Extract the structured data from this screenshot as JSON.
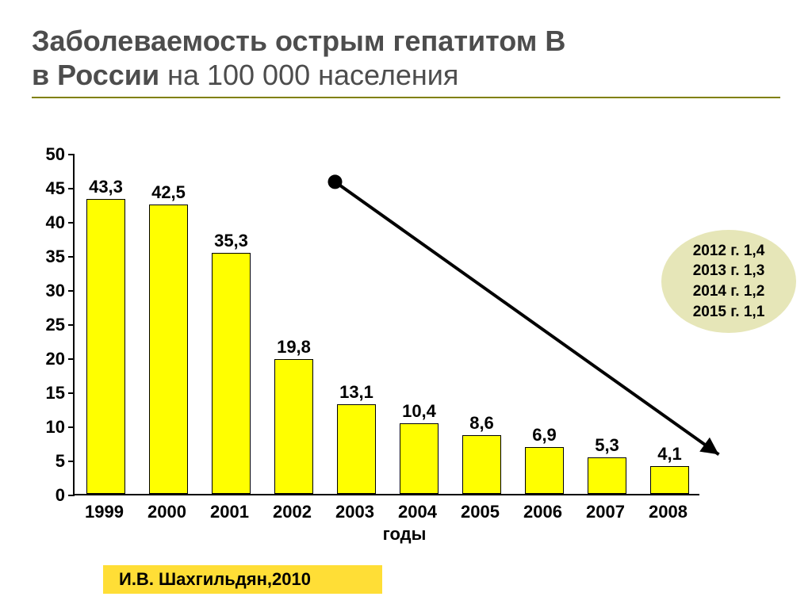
{
  "title": {
    "line1": "Заболеваемость острым гепатитом В",
    "line2_prefix": "в России ",
    "line2_rest": "на 100 000 населения"
  },
  "chart": {
    "type": "bar",
    "categories": [
      "1999",
      "2000",
      "2001",
      "2002",
      "2003",
      "2004",
      "2005",
      "2006",
      "2007",
      "2008"
    ],
    "values": [
      43.3,
      42.5,
      35.3,
      19.8,
      13.1,
      10.4,
      8.6,
      6.9,
      5.3,
      4.1
    ],
    "display_values": [
      "43,3",
      "42,5",
      "35,3",
      "19,8",
      "13,1",
      "10,4",
      "8,6",
      "6,9",
      "5,3",
      "4,1"
    ],
    "bar_color": "#ffff00",
    "bar_border_color": "#000000",
    "x_axis_label": "годы",
    "ylim": [
      0,
      50
    ],
    "ytick_step": 5,
    "yticks": [
      "0",
      "5",
      "10",
      "15",
      "20",
      "25",
      "30",
      "35",
      "40",
      "45",
      "50"
    ],
    "background_color": "#ffffff",
    "axis_color": "#000000",
    "bar_width_ratio": 0.62,
    "label_fontsize": 22,
    "label_fontweight": "bold",
    "trend_arrow": {
      "from_category_index": 3,
      "to_category_index": 9,
      "from_value": 46,
      "to_value": 6,
      "color": "#000000",
      "width": 4,
      "start_marker": "circle",
      "end_marker": "arrow"
    }
  },
  "callout": {
    "lines": [
      "2012 г. 1,4",
      "2013 г. 1,3",
      "2014 г. 1,2",
      "2015 г. 1,1"
    ],
    "background_color": "#e6e6b8",
    "shape": "ellipse",
    "fontsize": 19
  },
  "source": {
    "text": "И.В. Шахгильдян,2010",
    "background_color": "#ffde36"
  }
}
